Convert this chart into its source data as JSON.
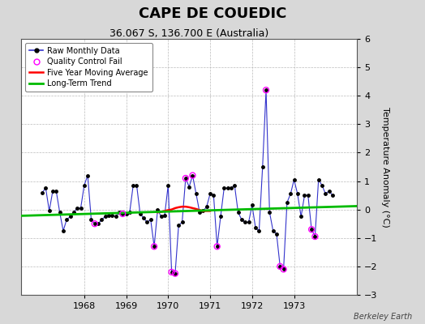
{
  "title": "CAPE DE COUEDIC",
  "subtitle": "36.067 S, 136.700 E (Australia)",
  "ylabel": "Temperature Anomaly (°C)",
  "credit": "Berkeley Earth",
  "ylim": [
    -3,
    6
  ],
  "yticks": [
    -3,
    -2,
    -1,
    0,
    1,
    2,
    3,
    4,
    5,
    6
  ],
  "background_color": "#d8d8d8",
  "plot_bg_color": "#ffffff",
  "raw_color": "#3333cc",
  "raw_lw": 0.8,
  "marker_color": "#000000",
  "marker_size": 2.5,
  "qc_color": "#ff00ff",
  "qc_marker_size": 5,
  "mavg_color": "#ff0000",
  "mavg_lw": 1.8,
  "trend_color": "#00bb00",
  "trend_lw": 2.0,
  "raw_data": [
    [
      1967.0,
      0.6
    ],
    [
      1967.083,
      0.75
    ],
    [
      1967.167,
      -0.05
    ],
    [
      1967.25,
      0.65
    ],
    [
      1967.333,
      0.65
    ],
    [
      1967.417,
      -0.1
    ],
    [
      1967.5,
      -0.75
    ],
    [
      1967.583,
      -0.35
    ],
    [
      1967.667,
      -0.25
    ],
    [
      1967.75,
      -0.1
    ],
    [
      1967.833,
      0.05
    ],
    [
      1967.917,
      0.05
    ],
    [
      1968.0,
      0.85
    ],
    [
      1968.083,
      1.2
    ],
    [
      1968.167,
      -0.35
    ],
    [
      1968.25,
      -0.5
    ],
    [
      1968.333,
      -0.5
    ],
    [
      1968.417,
      -0.35
    ],
    [
      1968.5,
      -0.25
    ],
    [
      1968.583,
      -0.2
    ],
    [
      1968.667,
      -0.2
    ],
    [
      1968.75,
      -0.25
    ],
    [
      1968.833,
      -0.1
    ],
    [
      1968.917,
      -0.15
    ],
    [
      1969.0,
      -0.15
    ],
    [
      1969.083,
      -0.1
    ],
    [
      1969.167,
      0.85
    ],
    [
      1969.25,
      0.85
    ],
    [
      1969.333,
      -0.15
    ],
    [
      1969.417,
      -0.3
    ],
    [
      1969.5,
      -0.45
    ],
    [
      1969.583,
      -0.35
    ],
    [
      1969.667,
      -1.3
    ],
    [
      1969.75,
      0.0
    ],
    [
      1969.833,
      -0.25
    ],
    [
      1969.917,
      -0.2
    ],
    [
      1970.0,
      0.85
    ],
    [
      1970.083,
      -2.2
    ],
    [
      1970.167,
      -2.25
    ],
    [
      1970.25,
      -0.55
    ],
    [
      1970.333,
      -0.45
    ],
    [
      1970.417,
      1.1
    ],
    [
      1970.5,
      0.8
    ],
    [
      1970.583,
      1.2
    ],
    [
      1970.667,
      0.55
    ],
    [
      1970.75,
      -0.1
    ],
    [
      1970.833,
      -0.05
    ],
    [
      1970.917,
      0.1
    ],
    [
      1971.0,
      0.55
    ],
    [
      1971.083,
      0.5
    ],
    [
      1971.167,
      -1.3
    ],
    [
      1971.25,
      -0.25
    ],
    [
      1971.333,
      0.75
    ],
    [
      1971.417,
      0.75
    ],
    [
      1971.5,
      0.75
    ],
    [
      1971.583,
      0.85
    ],
    [
      1971.667,
      -0.1
    ],
    [
      1971.75,
      -0.35
    ],
    [
      1971.833,
      -0.45
    ],
    [
      1971.917,
      -0.45
    ],
    [
      1972.0,
      0.15
    ],
    [
      1972.083,
      -0.65
    ],
    [
      1972.167,
      -0.75
    ],
    [
      1972.25,
      1.5
    ],
    [
      1972.333,
      4.2
    ],
    [
      1972.417,
      -0.1
    ],
    [
      1972.5,
      -0.75
    ],
    [
      1972.583,
      -0.85
    ],
    [
      1972.667,
      -2.0
    ],
    [
      1972.75,
      -2.1
    ],
    [
      1972.833,
      0.25
    ],
    [
      1972.917,
      0.55
    ],
    [
      1973.0,
      1.05
    ],
    [
      1973.083,
      0.55
    ],
    [
      1973.167,
      -0.25
    ],
    [
      1973.25,
      0.5
    ],
    [
      1973.333,
      0.5
    ],
    [
      1973.417,
      -0.7
    ],
    [
      1973.5,
      -0.95
    ],
    [
      1973.583,
      1.05
    ],
    [
      1973.667,
      0.85
    ],
    [
      1973.75,
      0.55
    ],
    [
      1973.833,
      0.65
    ],
    [
      1973.917,
      0.5
    ]
  ],
  "qc_fails": [
    [
      1968.25,
      -0.5
    ],
    [
      1968.917,
      -0.15
    ],
    [
      1969.667,
      -1.3
    ],
    [
      1970.083,
      -2.2
    ],
    [
      1970.167,
      -2.25
    ],
    [
      1970.417,
      1.1
    ],
    [
      1970.583,
      1.2
    ],
    [
      1971.167,
      -1.3
    ],
    [
      1972.333,
      4.2
    ],
    [
      1972.667,
      -2.0
    ],
    [
      1972.75,
      -2.1
    ],
    [
      1973.417,
      -0.7
    ],
    [
      1973.5,
      -0.95
    ]
  ],
  "mavg_data": [
    [
      1969.75,
      -0.1
    ],
    [
      1969.833,
      -0.08
    ],
    [
      1969.917,
      -0.05
    ],
    [
      1970.0,
      -0.02
    ],
    [
      1970.083,
      0.0
    ],
    [
      1970.167,
      0.05
    ],
    [
      1970.25,
      0.08
    ],
    [
      1970.333,
      0.1
    ],
    [
      1970.417,
      0.1
    ],
    [
      1970.5,
      0.08
    ],
    [
      1970.583,
      0.05
    ],
    [
      1970.667,
      0.02
    ],
    [
      1970.75,
      -0.02
    ],
    [
      1970.833,
      -0.05
    ],
    [
      1970.917,
      -0.05
    ],
    [
      1971.0,
      -0.05
    ]
  ],
  "trend_x": [
    1966.5,
    1974.5
  ],
  "trend_y": [
    -0.22,
    0.12
  ],
  "xlim": [
    1966.5,
    1974.5
  ],
  "xtick_years": [
    1968,
    1969,
    1970,
    1971,
    1972,
    1973
  ],
  "title_fontsize": 13,
  "subtitle_fontsize": 9,
  "tick_fontsize": 8,
  "ylabel_fontsize": 8,
  "legend_fontsize": 7,
  "credit_fontsize": 7
}
